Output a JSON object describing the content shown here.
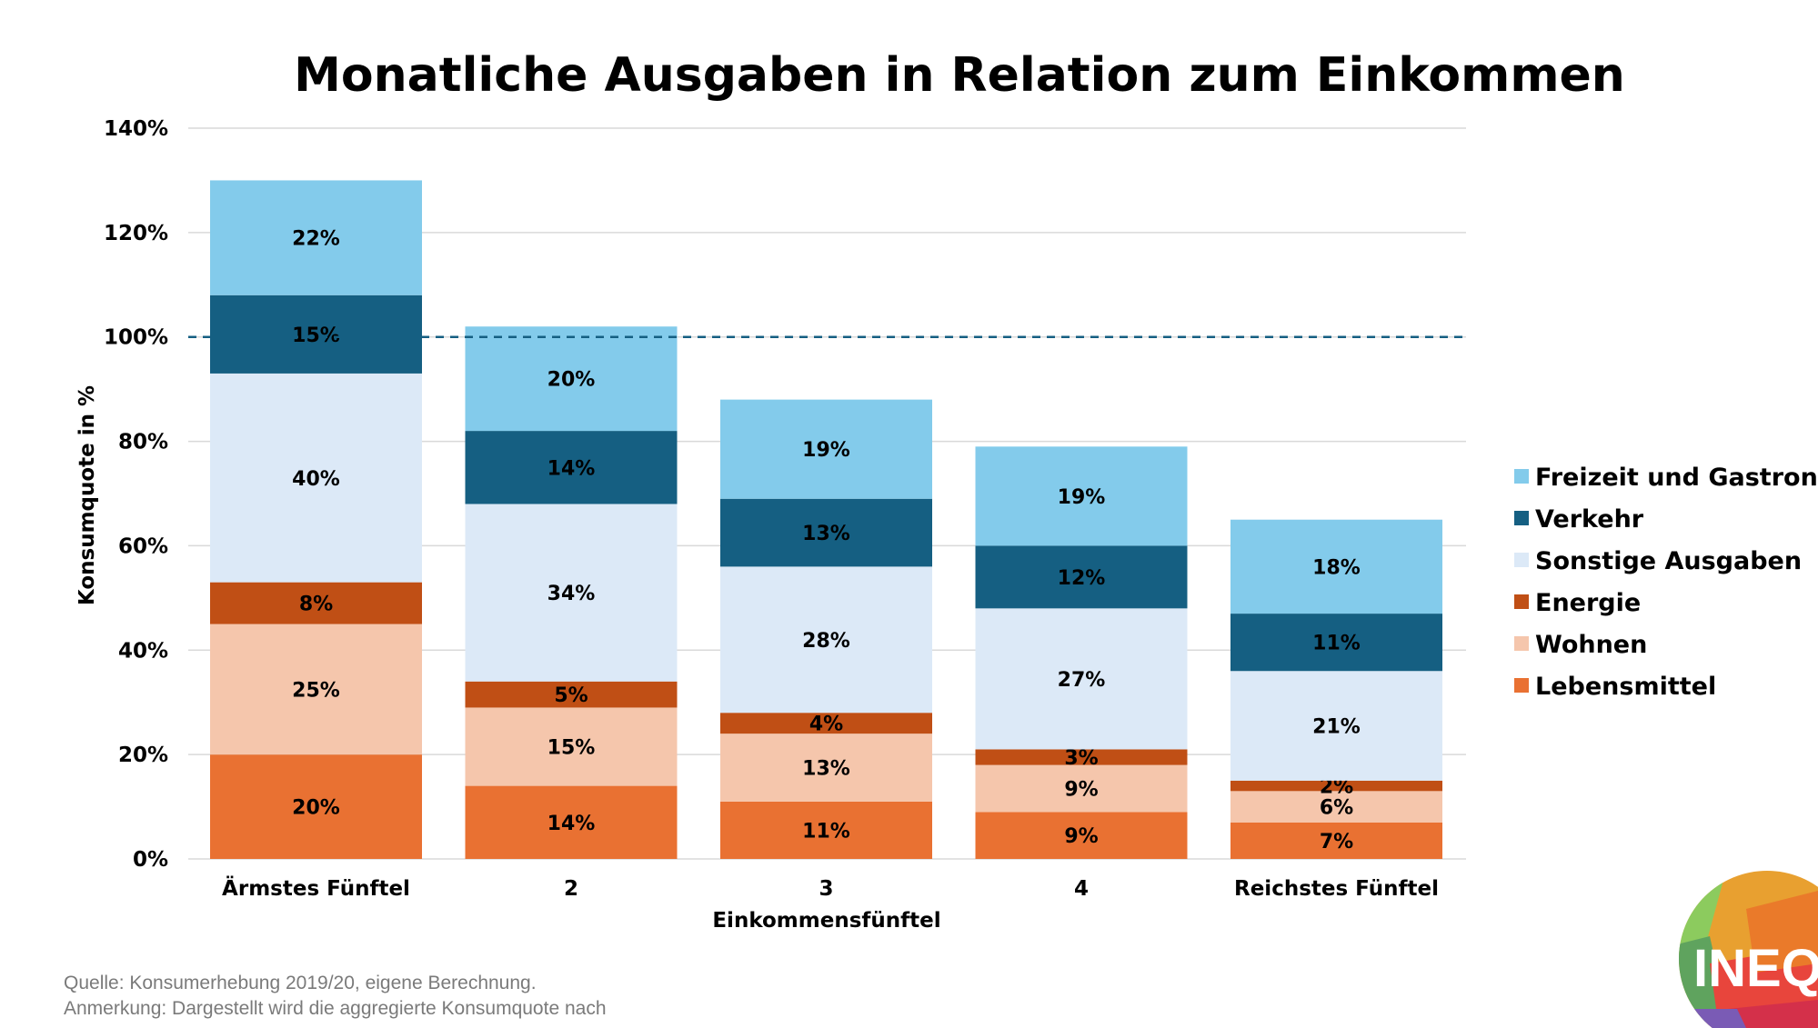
{
  "chart_data": {
    "type": "bar",
    "stacked": true,
    "title": "Monatliche Ausgaben in Relation zum Einkommen",
    "xlabel": "Einkommensfünftel",
    "ylabel": "Konsumquote in %",
    "ylim": [
      0,
      140
    ],
    "yticks": [
      "0%",
      "20%",
      "40%",
      "60%",
      "80%",
      "100%",
      "120%",
      "140%"
    ],
    "grid": true,
    "reference_line": 100,
    "legend_position": "right",
    "categories": [
      "Ärmstes Fünftel",
      "2",
      "3",
      "4",
      "Reichstes Fünftel"
    ],
    "series": [
      {
        "name": "Lebensmittel",
        "color": "#E97132",
        "values": [
          20,
          14,
          11,
          9,
          7
        ]
      },
      {
        "name": "Wohnen",
        "color": "#F5C6AC",
        "values": [
          25,
          15,
          13,
          9,
          6
        ]
      },
      {
        "name": "Energie",
        "color": "#C04F15",
        "values": [
          8,
          5,
          4,
          3,
          2
        ]
      },
      {
        "name": "Sonstige Ausgaben",
        "color": "#DCE9F7",
        "values": [
          40,
          34,
          28,
          27,
          21
        ]
      },
      {
        "name": "Verkehr",
        "color": "#155F82",
        "values": [
          15,
          14,
          13,
          12,
          11
        ]
      },
      {
        "name": "Freizeit und Gastronom",
        "color": "#83CBEB",
        "values": [
          22,
          20,
          19,
          19,
          18
        ]
      }
    ]
  },
  "notes": {
    "source": "Quelle: Konsumerhebung 2019/20, eigene Berechnung.",
    "remark": "Anmerkung: Dargestellt wird die aggregierte Konsumquote nach"
  },
  "logo": {
    "text": "INEQ"
  }
}
